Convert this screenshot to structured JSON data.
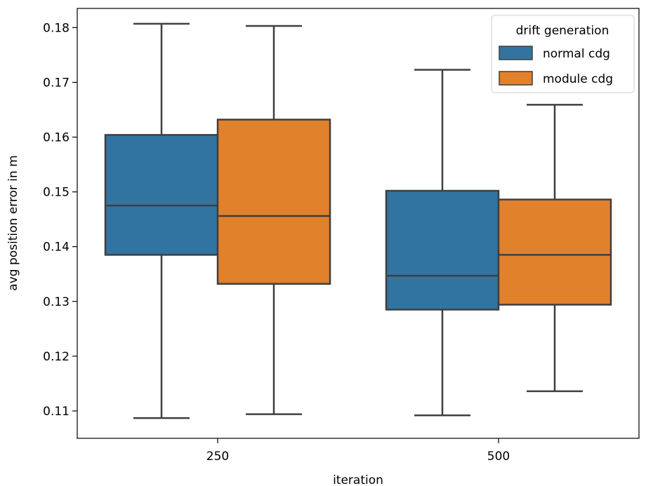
{
  "chart_data": {
    "type": "boxplot",
    "xlabel": "iteration",
    "ylabel": "avg position error in m",
    "categories": [
      "250",
      "500"
    ],
    "ylim": [
      0.105,
      0.1835
    ],
    "yticks": [
      0.11,
      0.12,
      0.13,
      0.14,
      0.15,
      0.16,
      0.17,
      0.18
    ],
    "ytick_labels": [
      "0.11",
      "0.12",
      "0.13",
      "0.14",
      "0.15",
      "0.16",
      "0.17",
      "0.18"
    ],
    "grid": false,
    "legend": {
      "title": "drift generation",
      "placement": "top-right"
    },
    "series": [
      {
        "name": "normal cdg",
        "color": "#3274a1",
        "boxes": [
          {
            "category": "250",
            "min": 0.1087,
            "q1": 0.1385,
            "median": 0.1475,
            "q3": 0.1604,
            "max": 0.1807
          },
          {
            "category": "500",
            "min": 0.1092,
            "q1": 0.1285,
            "median": 0.1347,
            "q3": 0.1502,
            "max": 0.1723
          }
        ]
      },
      {
        "name": "module cdg",
        "color": "#e1812c",
        "boxes": [
          {
            "category": "250",
            "min": 0.1094,
            "q1": 0.1332,
            "median": 0.1456,
            "q3": 0.1632,
            "max": 0.1803
          },
          {
            "category": "500",
            "min": 0.1136,
            "q1": 0.1294,
            "median": 0.1385,
            "q3": 0.1486,
            "max": 0.1659
          }
        ]
      }
    ]
  }
}
